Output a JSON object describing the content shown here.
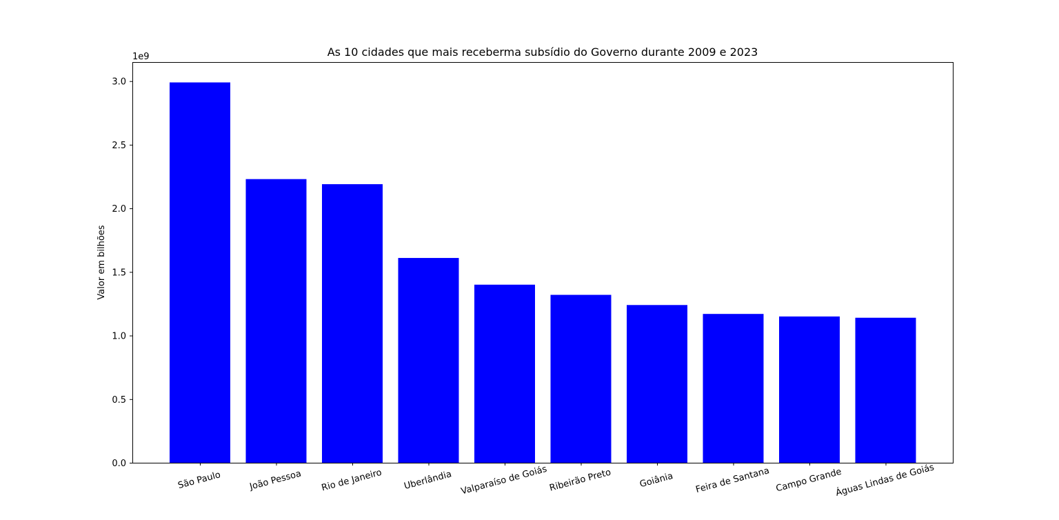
{
  "chart_data": {
    "type": "bar",
    "title": "As 10 cidades que mais receberma subsídio do Governo durante 2009 e 2023",
    "xlabel": "",
    "ylabel": "Valor em bilhões",
    "y_offset_label": "1e9",
    "categories": [
      "São Paulo",
      "João Pessoa",
      "Rio de Janeiro",
      "Uberlândia",
      "Valparaíso de Goiás",
      "Ribeirão Preto",
      "Goiânia",
      "Feira de Santana",
      "Campo Grande",
      "Águas Lindas de Goiás"
    ],
    "values": [
      2990000000.0,
      2230000000.0,
      2190000000.0,
      1610000000.0,
      1400000000.0,
      1320000000.0,
      1240000000.0,
      1170000000.0,
      1150000000.0,
      1140000000.0
    ],
    "ylim": [
      0,
      3150000000.0
    ],
    "yticks": [
      0,
      500000000.0,
      1000000000.0,
      1500000000.0,
      2000000000.0,
      2500000000.0,
      3000000000.0
    ],
    "ytick_labels": [
      "0.0",
      "0.5",
      "1.0",
      "1.5",
      "2.0",
      "2.5",
      "3.0"
    ],
    "xtick_rotation_deg": 15,
    "bar_color": "#0000ff",
    "grid": false,
    "legend": "none"
  }
}
